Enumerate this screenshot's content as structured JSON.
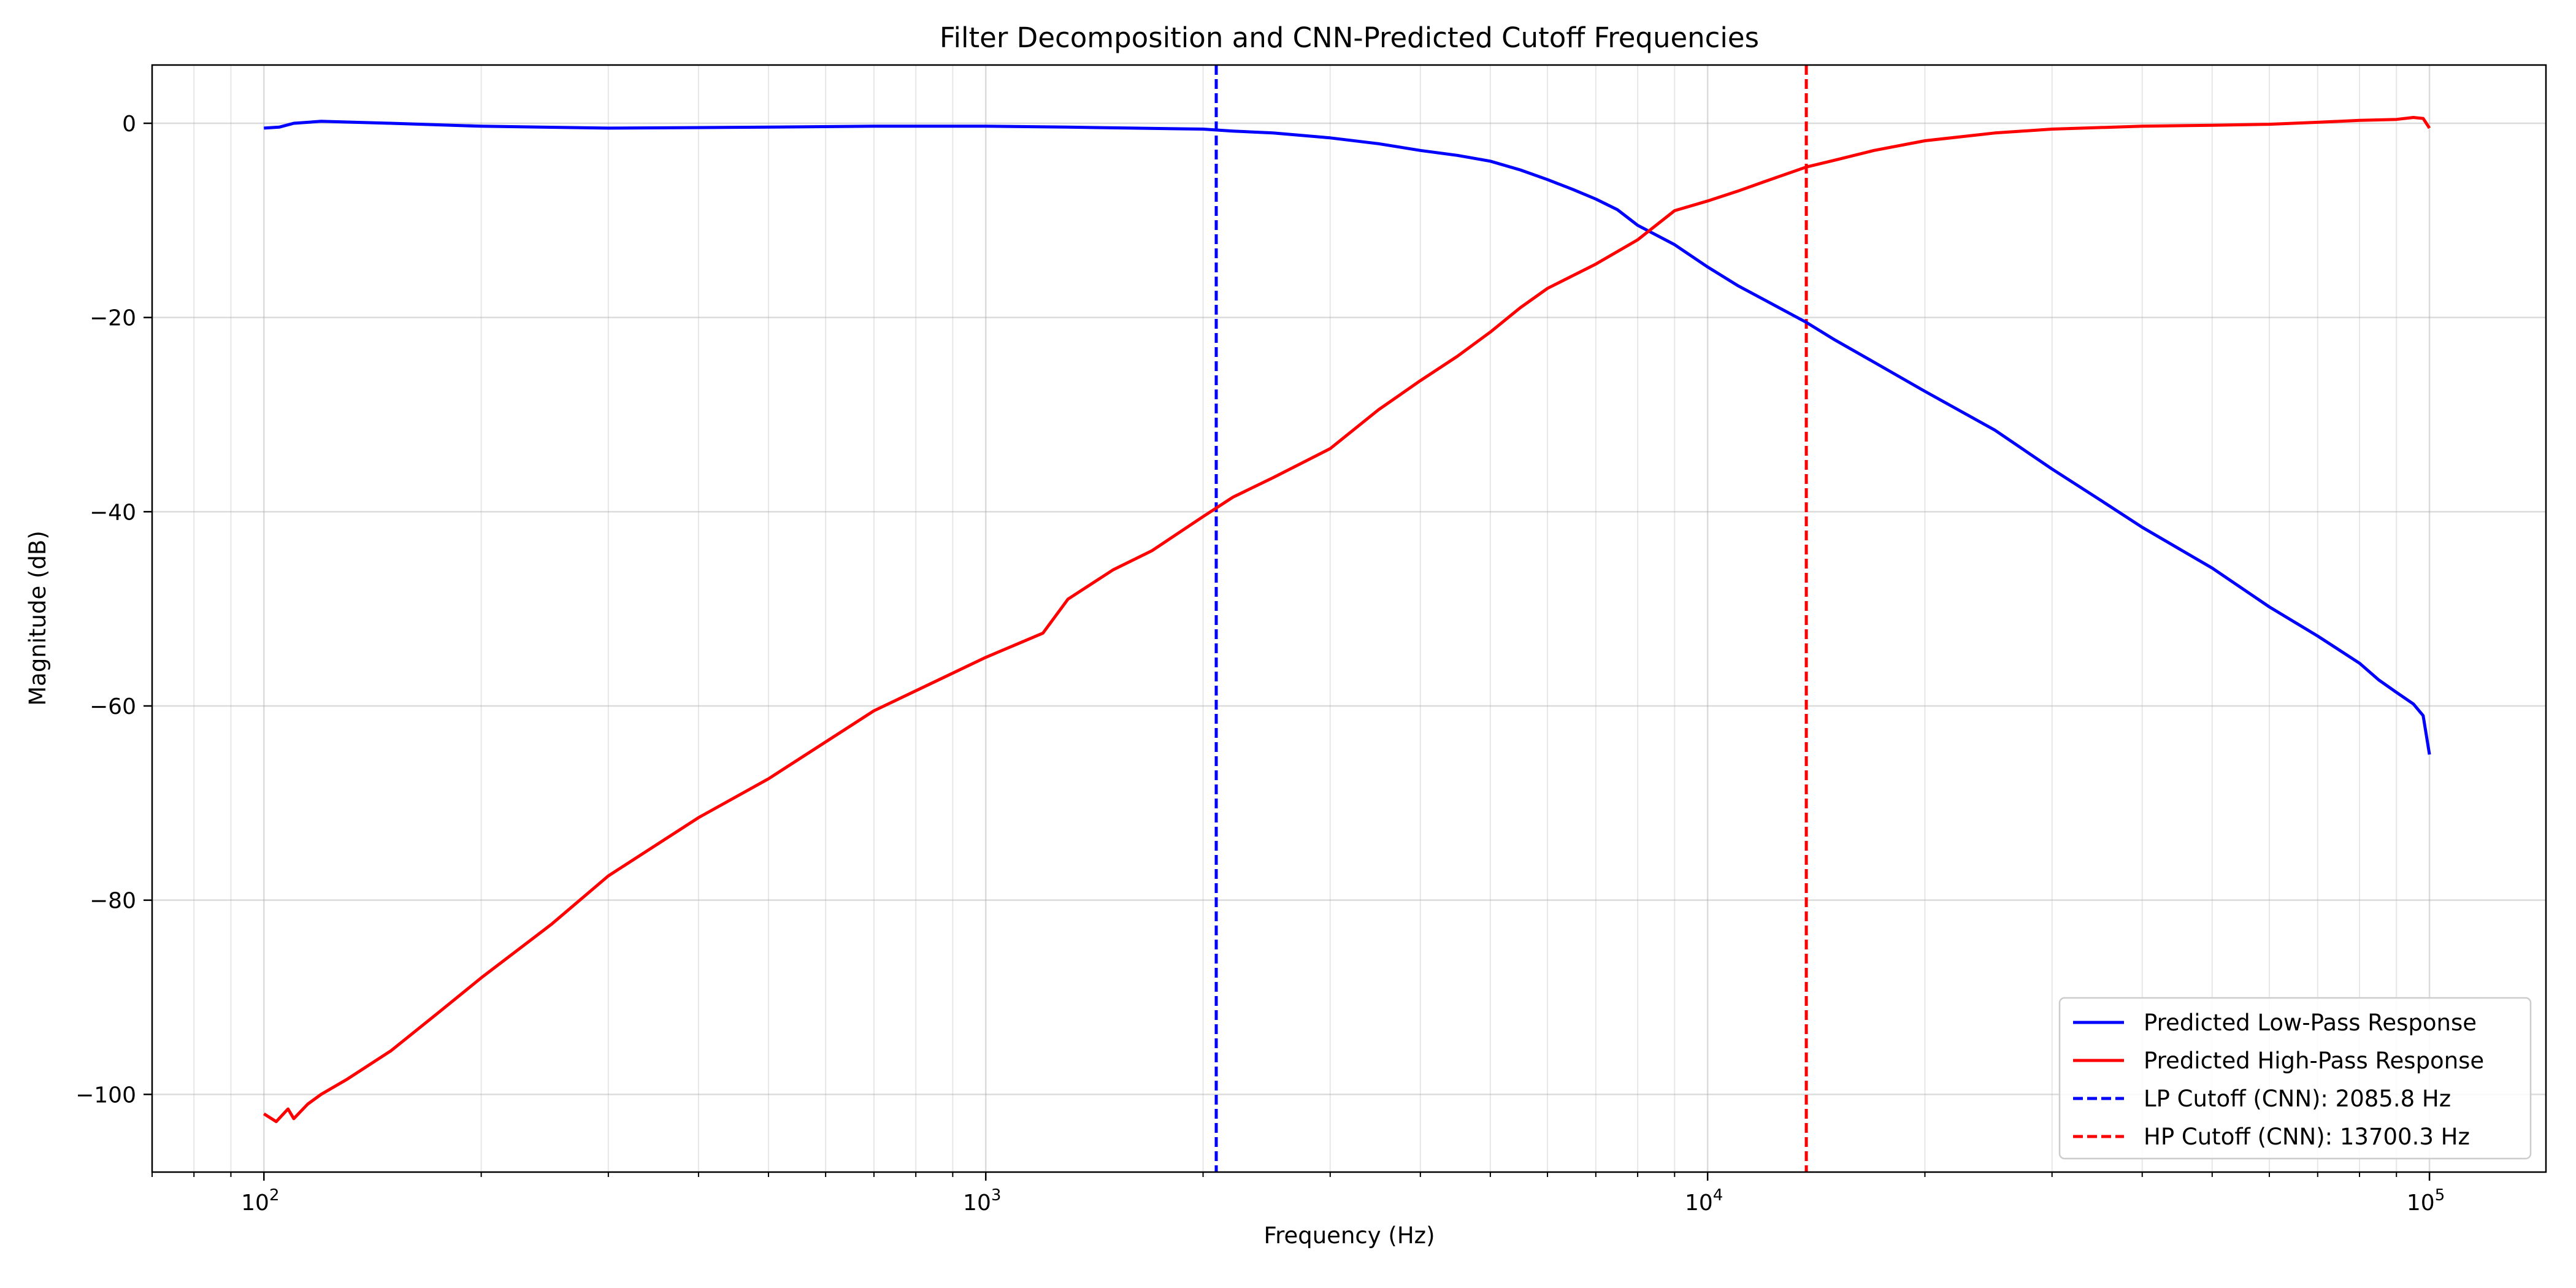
{
  "chart_data": {
    "type": "line",
    "title": "Filter Decomposition and CNN-Predicted Cutoff Frequencies",
    "xlabel": "Frequency (Hz)",
    "ylabel": "Magnitude (dB)",
    "xscale": "log",
    "xlim": [
      70,
      145000
    ],
    "ylim": [
      -108,
      6
    ],
    "x_ticks": [
      {
        "value": 100,
        "base": "10",
        "exp": "2"
      },
      {
        "value": 1000,
        "base": "10",
        "exp": "3"
      },
      {
        "value": 10000,
        "base": "10",
        "exp": "4"
      },
      {
        "value": 100000,
        "base": "10",
        "exp": "5"
      }
    ],
    "y_ticks": [
      {
        "value": 0,
        "label": "0"
      },
      {
        "value": -20,
        "label": "−20"
      },
      {
        "value": -40,
        "label": "−40"
      },
      {
        "value": -60,
        "label": "−60"
      },
      {
        "value": -80,
        "label": "−80"
      },
      {
        "value": -100,
        "label": "−100"
      }
    ],
    "grid": true,
    "legend_position": "lower-right",
    "series": [
      {
        "name": "Predicted Low-Pass Response",
        "color": "#0000ff",
        "style": "solid",
        "x": [
          100,
          105,
          110,
          120,
          150,
          200,
          300,
          500,
          700,
          1000,
          1300,
          1600,
          2000,
          2200,
          2500,
          3000,
          3500,
          4000,
          4500,
          5000,
          5500,
          6000,
          6500,
          7000,
          7500,
          8000,
          9000,
          10000,
          11000,
          12000,
          13700,
          15000,
          17000,
          20000,
          25000,
          30000,
          35000,
          40000,
          50000,
          60000,
          70000,
          80000,
          85000,
          90000,
          95000,
          98000,
          100000
        ],
        "y": [
          -0.5,
          -0.4,
          0.0,
          0.2,
          0.0,
          -0.3,
          -0.5,
          -0.4,
          -0.3,
          -0.3,
          -0.4,
          -0.5,
          -0.6,
          -0.8,
          -1.0,
          -1.5,
          -2.1,
          -2.8,
          -3.3,
          -3.9,
          -4.8,
          -5.8,
          -6.8,
          -7.8,
          -8.9,
          -10.5,
          -12.5,
          -14.8,
          -16.7,
          -18.2,
          -20.5,
          -22.3,
          -24.6,
          -27.6,
          -31.6,
          -35.6,
          -38.8,
          -41.6,
          -45.8,
          -49.8,
          -52.8,
          -55.6,
          -57.3,
          -58.6,
          -59.8,
          -61.0,
          -65.0
        ]
      },
      {
        "name": "Predicted High-Pass Response",
        "color": "#ff0000",
        "style": "solid",
        "x": [
          100,
          104,
          108,
          110,
          115,
          120,
          130,
          150,
          175,
          200,
          250,
          300,
          400,
          500,
          700,
          1000,
          1200,
          1300,
          1500,
          1700,
          2000,
          2200,
          2500,
          3000,
          3500,
          4000,
          4500,
          5000,
          5500,
          6000,
          7000,
          8000,
          9000,
          10000,
          11000,
          12000,
          13700,
          15000,
          17000,
          20000,
          25000,
          30000,
          40000,
          50000,
          60000,
          70000,
          80000,
          90000,
          95000,
          98000,
          100000
        ],
        "y": [
          -102.0,
          -102.8,
          -101.5,
          -102.5,
          -101.0,
          -100.0,
          -98.5,
          -95.5,
          -91.5,
          -88.0,
          -82.5,
          -77.5,
          -71.5,
          -67.5,
          -60.5,
          -55.0,
          -52.5,
          -49.0,
          -46.0,
          -44.0,
          -40.5,
          -38.5,
          -36.5,
          -33.5,
          -29.5,
          -26.5,
          -24.0,
          -21.5,
          -19.0,
          -17.0,
          -14.5,
          -12.0,
          -9.0,
          -8.0,
          -7.0,
          -6.0,
          -4.5,
          -3.8,
          -2.8,
          -1.8,
          -1.0,
          -0.6,
          -0.3,
          -0.2,
          -0.1,
          0.1,
          0.3,
          0.4,
          0.6,
          0.5,
          -0.5
        ]
      }
    ],
    "vlines": [
      {
        "name": "LP Cutoff (CNN): 2085.8 Hz",
        "x": 2085.8,
        "color": "#0000ff",
        "style": "dashed"
      },
      {
        "name": "HP Cutoff (CNN): 13700.3 Hz",
        "x": 13700.3,
        "color": "#ff0000",
        "style": "dashed"
      }
    ]
  }
}
